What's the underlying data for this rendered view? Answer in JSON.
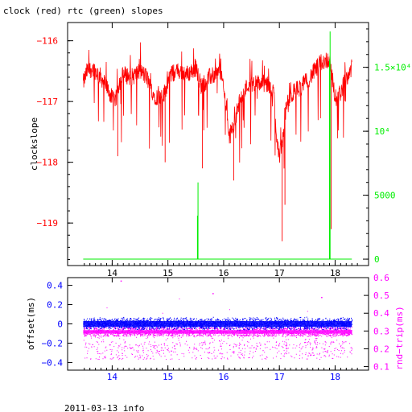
{
  "title": "clock (red) rtc (green) slopes",
  "footer": "2011-03-13 info",
  "colors": {
    "clock": "#ff0000",
    "rtc": "#00ee00",
    "offset": "#0000ff",
    "roundtrip": "#ff00ff",
    "frame": "#000000"
  },
  "chart_data": [
    {
      "type": "line",
      "series": [
        {
          "name": "clock",
          "color": "#ff0000",
          "x": [
            13.48,
            13.55,
            13.65,
            13.8,
            13.95,
            14.05,
            14.12,
            14.2,
            14.35,
            14.5,
            14.62,
            14.75,
            14.9,
            15.05,
            15.2,
            15.35,
            15.5,
            15.6,
            15.75,
            15.95,
            16.05,
            16.1,
            16.2,
            16.3,
            16.45,
            16.6,
            16.75,
            16.9,
            16.95,
            17.0,
            17.05,
            17.12,
            17.25,
            17.4,
            17.55,
            17.75,
            17.9,
            18.0,
            18.1,
            18.2,
            18.3
          ],
          "y": [
            -116.7,
            -116.5,
            -116.45,
            -116.6,
            -116.85,
            -117.05,
            -116.7,
            -116.55,
            -116.6,
            -116.5,
            -116.6,
            -116.9,
            -116.95,
            -116.55,
            -116.5,
            -116.55,
            -116.45,
            -116.75,
            -116.6,
            -116.5,
            -117.1,
            -117.6,
            -117.3,
            -116.95,
            -116.7,
            -116.7,
            -116.7,
            -116.85,
            -117.55,
            -117.9,
            -117.7,
            -117.1,
            -116.85,
            -116.75,
            -116.6,
            -116.35,
            -116.3,
            -116.95,
            -116.85,
            -116.6,
            -116.45
          ]
        },
        {
          "name": "rtc",
          "color": "#00ee00",
          "spikes": [
            [
              15.53,
              3400
            ],
            [
              15.54,
              6000
            ],
            [
              17.9,
              15600
            ],
            [
              17.91,
              17800
            ]
          ]
        }
      ],
      "xlim": [
        13.2,
        18.6
      ],
      "xticks": [
        "14",
        "15",
        "16",
        "17",
        "18"
      ],
      "ylim": [
        -119.7,
        -115.7
      ],
      "yticks": [
        "−116",
        "−117",
        "−118",
        "−119"
      ],
      "ylabel": "clockslope",
      "y2lim": [
        -500,
        18500
      ],
      "y2ticks": [
        "0",
        "5000",
        "10⁴",
        "1.5×10⁴"
      ]
    },
    {
      "type": "scatter",
      "series": [
        {
          "name": "offset",
          "color": "#0000ff",
          "center": 0.0,
          "spread": 0.07,
          "outliers": [
            [
              14.15,
              0.45
            ],
            [
              17.75,
              0.28
            ],
            [
              15.8,
              0.32
            ]
          ]
        },
        {
          "name": "round-trip",
          "color": "#ff00ff",
          "center": 0.295,
          "lower_cloud": 0.14
        }
      ],
      "xlim": [
        13.2,
        18.6
      ],
      "xticks": [
        "14",
        "15",
        "16",
        "17",
        "18"
      ],
      "ylim": [
        -0.48,
        0.48
      ],
      "yticks": [
        "0.4",
        "0.2",
        "0",
        "−0.2",
        "−0.4"
      ],
      "ylabel": "offset(ms)",
      "y2lim": [
        0.08,
        0.6
      ],
      "y2ticks": [
        "0.6",
        "0.5",
        "0.4",
        "0.3",
        "0.2",
        "0.1"
      ],
      "y2label": "rnd−trip(ms)"
    }
  ]
}
